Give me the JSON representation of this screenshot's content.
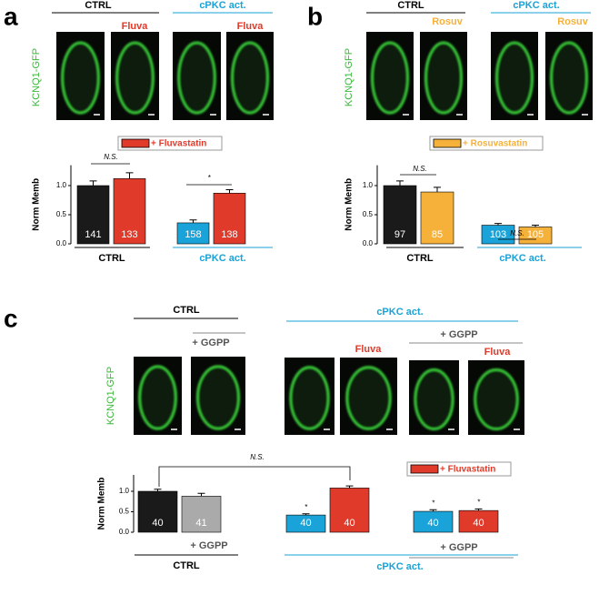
{
  "panels": [
    {
      "letter": "a",
      "header_left": "CTRL",
      "header_right": "cPKC act.",
      "image_labels": [
        "Fluva",
        "Fluva"
      ],
      "image_axis_label": "KCNQ1-GFP",
      "footer_left": "CTRL",
      "footer_right": "cPKC act."
    },
    {
      "letter": "b",
      "header_left": "CTRL",
      "header_right": "cPKC act.",
      "image_labels": [
        "Rosuv",
        "Rosuv"
      ],
      "image_axis_label": "KCNQ1-GFP",
      "footer_left": "CTRL",
      "footer_right": "cPKC act."
    },
    {
      "letter": "c",
      "header_left": "CTRL",
      "header_left_sub": "+ GGPP",
      "header_right": "cPKC act.",
      "header_right_sub": "+ GGPP",
      "image_labels": [
        "Fluva",
        "Fluva"
      ],
      "image_axis_label": "KCNQ1-GFP",
      "footer_left": "CTRL",
      "footer_left_sub": "+ GGPP",
      "footer_right": "cPKC act.",
      "footer_right_sub": "+ GGPP"
    }
  ],
  "chart_data": [
    {
      "type": "bar",
      "y_label": "Norm Memb",
      "ylim": [
        0,
        1.35
      ],
      "yticks": [
        {
          "value": 0,
          "label": "0.0"
        },
        {
          "value": 0.5,
          "label": "0.5"
        },
        {
          "value": 1,
          "label": "1.0"
        }
      ],
      "values": [
        1.0,
        1.12,
        0.36,
        0.87
      ],
      "errors": [
        0.08,
        0.1,
        0.05,
        0.06
      ],
      "colors": [
        "#1a1a1a",
        "#e03a2a",
        "#1aa3d8",
        "#e03a2a"
      ],
      "n_labels": [
        "141",
        "133",
        "158",
        "138"
      ],
      "legend": {
        "label": "+ Fluvastatin",
        "color": "#e03a2a"
      },
      "annotations": [
        "N.S.",
        "*"
      ]
    },
    {
      "type": "bar",
      "y_label": "Norm Memb",
      "ylim": [
        0,
        1.35
      ],
      "yticks": [
        {
          "value": 0,
          "label": "0.0"
        },
        {
          "value": 0.5,
          "label": "0.5"
        },
        {
          "value": 1,
          "label": "1.0"
        }
      ],
      "values": [
        1.0,
        0.89,
        0.32,
        0.29
      ],
      "errors": [
        0.08,
        0.08,
        0.03,
        0.03
      ],
      "colors": [
        "#1a1a1a",
        "#f5b13a",
        "#1aa3d8",
        "#f5b13a"
      ],
      "n_labels": [
        "97",
        "85",
        "103",
        "105"
      ],
      "legend": {
        "label": "+ Rosuvastatin",
        "color": "#f5b13a"
      },
      "annotations": [
        "N.S.",
        "N.S."
      ]
    },
    {
      "type": "bar",
      "y_label": "Norm Memb",
      "ylim": [
        0,
        1.4
      ],
      "yticks": [
        {
          "value": 0,
          "label": "0.0"
        },
        {
          "value": 0.5,
          "label": "0.5"
        },
        {
          "value": 1,
          "label": "1.0"
        }
      ],
      "values": [
        1.0,
        0.88,
        0.42,
        1.08,
        0.51,
        0.53
      ],
      "errors": [
        0.05,
        0.07,
        0.03,
        0.05,
        0.04,
        0.04
      ],
      "colors": [
        "#1a1a1a",
        "#aaaaaa",
        "#1aa3d8",
        "#e03a2a",
        "#1aa3d8",
        "#e03a2a"
      ],
      "n_labels": [
        "40",
        "41",
        "40",
        "40",
        "40",
        "40"
      ],
      "legend": {
        "label": "+ Fluvastatin",
        "color": "#e03a2a"
      },
      "annotations": [
        "N.S.",
        "*",
        "*",
        "*"
      ]
    }
  ]
}
